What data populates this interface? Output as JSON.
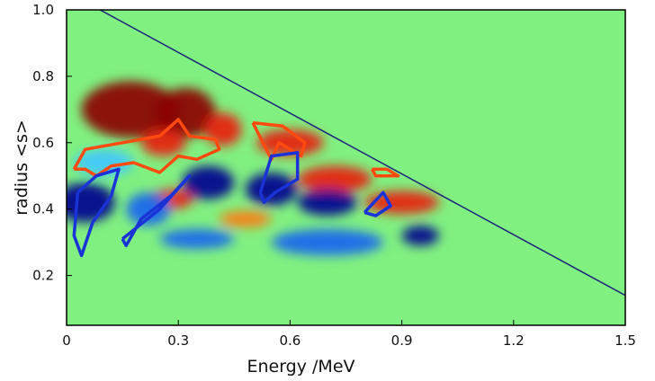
{
  "chart_data": {
    "type": "heatmap",
    "title": "",
    "xlabel": "Energy  /MeV",
    "ylabel": "radius <s>",
    "xlim": [
      0,
      1.5
    ],
    "ylim": [
      0.05,
      1.0
    ],
    "x_ticks": [
      {
        "value": 0,
        "label": "0"
      },
      {
        "value": 0.3,
        "label": "0.3"
      },
      {
        "value": 0.6,
        "label": "0.6"
      },
      {
        "value": 0.9,
        "label": "0.9"
      },
      {
        "value": 1.2,
        "label": "1.2"
      },
      {
        "value": 1.5,
        "label": "1.5"
      }
    ],
    "y_ticks": [
      {
        "value": 0.2,
        "label": "0.2"
      },
      {
        "value": 0.4,
        "label": "0.4"
      },
      {
        "value": 0.6,
        "label": "0.6"
      },
      {
        "value": 0.8,
        "label": "0.8"
      },
      {
        "value": 1.0,
        "label": "1.0"
      }
    ],
    "colormap": "jet",
    "background_color": "#80f080",
    "boundary_line": {
      "color": "#1a237e",
      "x": [
        0.09,
        1.5
      ],
      "y": [
        1.0,
        0.14
      ]
    },
    "blobs": [
      {
        "x": 0.17,
        "y": 0.7,
        "rx": 0.13,
        "ry": 0.085,
        "level": "max"
      },
      {
        "x": 0.32,
        "y": 0.69,
        "rx": 0.08,
        "ry": 0.075,
        "level": "max"
      },
      {
        "x": 0.42,
        "y": 0.64,
        "rx": 0.05,
        "ry": 0.05,
        "level": "high"
      },
      {
        "x": 0.26,
        "y": 0.6,
        "rx": 0.06,
        "ry": 0.04,
        "level": "high"
      },
      {
        "x": 0.6,
        "y": 0.6,
        "rx": 0.09,
        "ry": 0.04,
        "level": "high"
      },
      {
        "x": 0.72,
        "y": 0.49,
        "rx": 0.1,
        "ry": 0.04,
        "level": "high"
      },
      {
        "x": 0.28,
        "y": 0.43,
        "rx": 0.06,
        "ry": 0.03,
        "level": "high"
      },
      {
        "x": 0.48,
        "y": 0.37,
        "rx": 0.07,
        "ry": 0.025,
        "level": "mid_high"
      },
      {
        "x": 0.9,
        "y": 0.42,
        "rx": 0.1,
        "ry": 0.035,
        "level": "high"
      },
      {
        "x": 0.05,
        "y": 0.42,
        "rx": 0.08,
        "ry": 0.06,
        "level": "min"
      },
      {
        "x": 0.38,
        "y": 0.48,
        "rx": 0.07,
        "ry": 0.05,
        "level": "min"
      },
      {
        "x": 0.22,
        "y": 0.4,
        "rx": 0.06,
        "ry": 0.05,
        "level": "low"
      },
      {
        "x": 0.55,
        "y": 0.46,
        "rx": 0.07,
        "ry": 0.05,
        "level": "min"
      },
      {
        "x": 0.7,
        "y": 0.42,
        "rx": 0.08,
        "ry": 0.04,
        "level": "min"
      },
      {
        "x": 0.35,
        "y": 0.31,
        "rx": 0.1,
        "ry": 0.03,
        "level": "low"
      },
      {
        "x": 0.7,
        "y": 0.3,
        "rx": 0.15,
        "ry": 0.04,
        "level": "low"
      },
      {
        "x": 0.95,
        "y": 0.32,
        "rx": 0.05,
        "ry": 0.03,
        "level": "min"
      },
      {
        "x": 0.1,
        "y": 0.54,
        "rx": 0.08,
        "ry": 0.04,
        "level": "low_mid"
      }
    ],
    "contours": [
      {
        "color": "#ff4a10",
        "x": [
          0.02,
          0.05,
          0.15,
          0.25,
          0.3,
          0.33,
          0.4,
          0.41,
          0.35,
          0.3,
          0.25,
          0.18,
          0.12,
          0.08,
          0.05,
          0.02
        ],
        "y": [
          0.52,
          0.58,
          0.6,
          0.62,
          0.67,
          0.62,
          0.61,
          0.58,
          0.55,
          0.56,
          0.51,
          0.54,
          0.53,
          0.5,
          0.52,
          0.52
        ]
      },
      {
        "color": "#ff4a10",
        "x": [
          0.5,
          0.58,
          0.64,
          0.63,
          0.57,
          0.55,
          0.5
        ],
        "y": [
          0.66,
          0.65,
          0.6,
          0.56,
          0.6,
          0.55,
          0.66
        ]
      },
      {
        "color": "#ff4a10",
        "x": [
          0.82,
          0.86,
          0.89,
          0.83,
          0.82
        ],
        "y": [
          0.52,
          0.52,
          0.5,
          0.5,
          0.52
        ]
      },
      {
        "color": "#1a33d6",
        "x": [
          0.03,
          0.08,
          0.14,
          0.12,
          0.07,
          0.04,
          0.02,
          0.03
        ],
        "y": [
          0.45,
          0.5,
          0.52,
          0.44,
          0.36,
          0.26,
          0.32,
          0.45
        ]
      },
      {
        "color": "#1a33d6",
        "x": [
          0.15,
          0.25,
          0.33,
          0.28,
          0.2,
          0.16,
          0.15
        ],
        "y": [
          0.31,
          0.4,
          0.5,
          0.44,
          0.37,
          0.29,
          0.31
        ]
      },
      {
        "color": "#1a33d6",
        "x": [
          0.52,
          0.55,
          0.62,
          0.62,
          0.56,
          0.53,
          0.52
        ],
        "y": [
          0.45,
          0.56,
          0.57,
          0.49,
          0.45,
          0.42,
          0.45
        ]
      },
      {
        "color": "#1a33d6",
        "x": [
          0.8,
          0.85,
          0.87,
          0.83,
          0.8
        ],
        "y": [
          0.39,
          0.45,
          0.41,
          0.38,
          0.39
        ]
      }
    ]
  }
}
